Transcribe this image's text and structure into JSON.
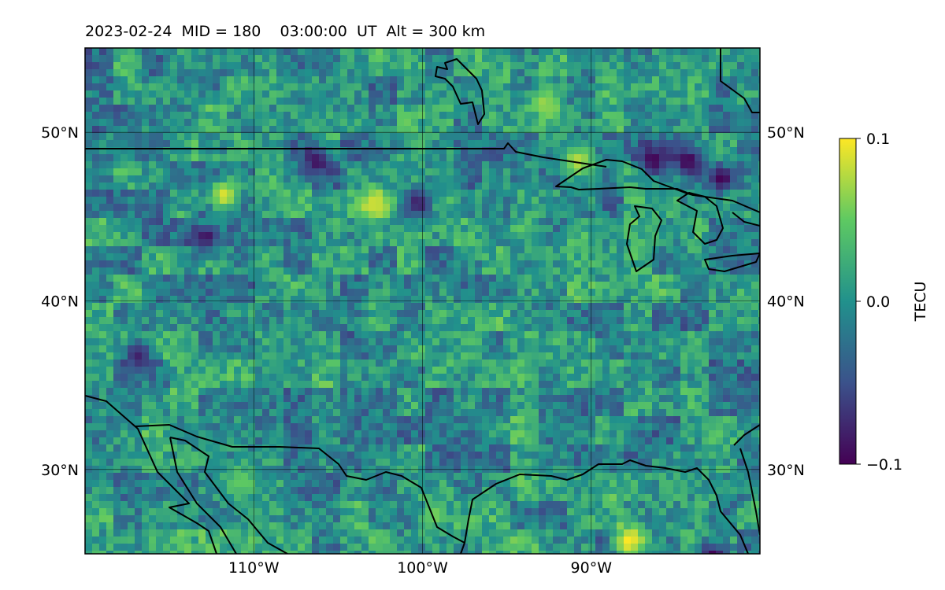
{
  "title": "2023-02-24  MID = 180    03:00:00  UT  Alt = 300 km",
  "map": {
    "projection": "plate carree",
    "lon_range_deg": [
      -120,
      -80
    ],
    "lat_range_deg": [
      25,
      55
    ],
    "lon_ticks": [
      {
        "value": -110,
        "label": "110°W"
      },
      {
        "value": -100,
        "label": "100°W"
      },
      {
        "value": -90,
        "label": "90°W"
      }
    ],
    "lat_ticks": [
      {
        "value": 50,
        "label": "50°N"
      },
      {
        "value": 40,
        "label": "40°N"
      },
      {
        "value": 30,
        "label": "30°N"
      }
    ],
    "grid": true,
    "features": [
      "coastlines",
      "Great Lakes",
      "US-Canada border",
      "US-Mexico border"
    ]
  },
  "colorbar": {
    "label": "TECU",
    "colormap": "viridis",
    "range": [
      -0.1,
      0.1
    ],
    "ticks": [
      {
        "value": 0.1,
        "label": "0.1"
      },
      {
        "value": 0.0,
        "label": "0.0"
      },
      {
        "value": -0.1,
        "label": "−0.1"
      }
    ],
    "colors": [
      "#440154",
      "#3b528b",
      "#21918c",
      "#5ec962",
      "#fde725"
    ]
  },
  "hotspots": [
    {
      "lon": -93.0,
      "lat": 52.0,
      "value": 0.07
    },
    {
      "lon": -112.0,
      "lat": 46.5,
      "value": 0.09
    },
    {
      "lon": -103.0,
      "lat": 46.0,
      "value": 0.09
    },
    {
      "lon": -88.0,
      "lat": 26.0,
      "value": 0.1
    },
    {
      "lon": -91.0,
      "lat": 48.5,
      "value": 0.08
    },
    {
      "lon": -99.5,
      "lat": 27.5,
      "value": 0.06
    },
    {
      "lon": -111.0,
      "lat": 29.5,
      "value": 0.05
    },
    {
      "lon": -86.5,
      "lat": 48.5,
      "value": -0.1
    },
    {
      "lon": -82.5,
      "lat": 47.5,
      "value": -0.1
    },
    {
      "lon": -113.0,
      "lat": 44.0,
      "value": -0.09
    },
    {
      "lon": -117.0,
      "lat": 37.0,
      "value": -0.08
    },
    {
      "lon": -100.5,
      "lat": 46.0,
      "value": -0.08
    },
    {
      "lon": -106.5,
      "lat": 48.5,
      "value": -0.09
    },
    {
      "lon": -83.0,
      "lat": 25.0,
      "value": -0.1
    },
    {
      "lon": -84.5,
      "lat": 48.5,
      "value": -0.1
    }
  ]
}
